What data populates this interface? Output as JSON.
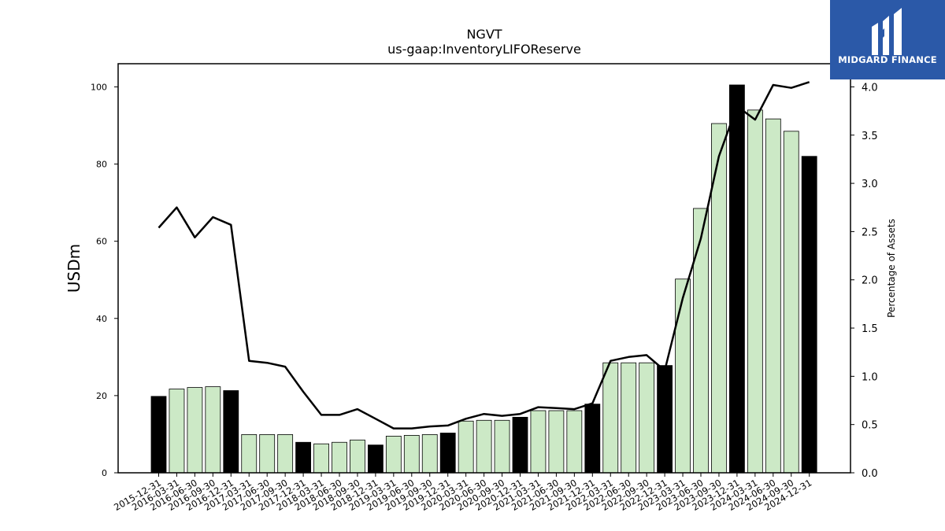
{
  "chart_data": {
    "type": "bar",
    "title": "NGVT",
    "subtitle": "us-gaap:InventoryLIFOReserve",
    "ylabel": "USDm",
    "y2label": "Percentage of Assets",
    "ylim": [
      0,
      106
    ],
    "y2lim": [
      0,
      4.24
    ],
    "yticks": [
      "0",
      "20",
      "40",
      "60",
      "80",
      "100"
    ],
    "y2ticks": [
      "0.0",
      "0.5",
      "1.0",
      "1.5",
      "2.0",
      "2.5",
      "3.0",
      "3.5",
      "4.0"
    ],
    "categories": [
      "2015-12-31",
      "2016-03-31",
      "2016-06-30",
      "2016-09-30",
      "2016-12-31",
      "2017-03-31",
      "2017-06-30",
      "2017-09-30",
      "2017-12-31",
      "2018-03-31",
      "2018-06-30",
      "2018-09-30",
      "2018-12-31",
      "2019-03-31",
      "2019-06-30",
      "2019-09-30",
      "2019-12-31",
      "2020-03-31",
      "2020-06-30",
      "2020-09-30",
      "2020-12-31",
      "2021-03-31",
      "2021-06-30",
      "2021-09-30",
      "2021-12-31",
      "2022-03-31",
      "2022-06-30",
      "2022-09-30",
      "2022-12-31",
      "2023-03-31",
      "2023-06-30",
      "2023-09-30",
      "2023-12-31",
      "2024-03-31",
      "2024-06-30",
      "2024-09-30",
      "2024-12-31"
    ],
    "series": [
      {
        "kind": "bar",
        "values": [
          19.8,
          21.7,
          22.1,
          22.3,
          21.3,
          9.9,
          9.9,
          9.9,
          7.9,
          7.5,
          7.9,
          8.5,
          7.2,
          9.5,
          9.7,
          9.9,
          10.3,
          13.4,
          13.6,
          13.6,
          14.4,
          16.1,
          16.1,
          16.1,
          17.8,
          28.5,
          28.5,
          28.5,
          27.8,
          50.2,
          68.5,
          90.5,
          100.5,
          94.0,
          91.7,
          88.5,
          82.0
        ]
      },
      {
        "kind": "line",
        "axis": "right",
        "values": [
          2.54,
          2.75,
          2.44,
          2.65,
          2.57,
          1.16,
          1.14,
          1.1,
          0.84,
          0.6,
          0.6,
          0.66,
          0.56,
          0.46,
          0.46,
          0.48,
          0.49,
          0.56,
          0.61,
          0.59,
          0.61,
          0.68,
          0.67,
          0.66,
          0.72,
          1.16,
          1.2,
          1.22,
          1.06,
          1.81,
          2.43,
          3.28,
          3.8,
          3.66,
          4.02,
          3.99,
          4.05
        ]
      }
    ],
    "highlight_color": "#000000",
    "bar_color": "#cce9c6",
    "line_color": "#000000"
  },
  "logo": {
    "text": "MIDGARD FINANCE",
    "bg": "#2b59a8"
  }
}
